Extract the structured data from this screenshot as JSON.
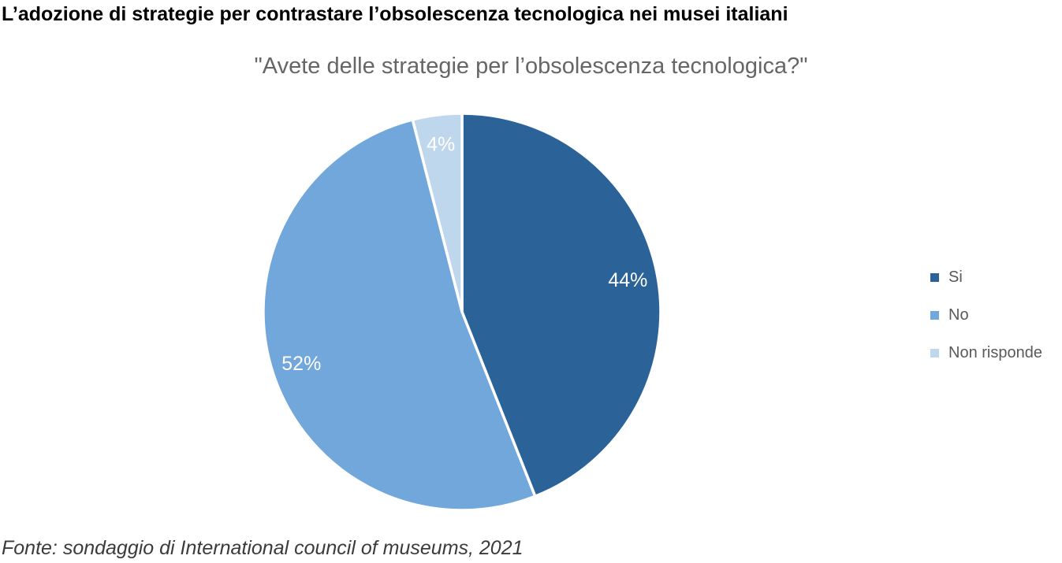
{
  "title": "L’adozione di strategie per contrastare l’obsolescenza tecnologica nei musei italiani",
  "title_color": "#000000",
  "source_note": "Fonte: sondaggio di International council of museums, 2021",
  "source_note_color": "#3B3B3B",
  "chart_data": {
    "type": "pie",
    "title": "\"Avete delle strategie per l’obsolescenza tecnologica?\"",
    "subtitle_color": "#666666",
    "categories": [
      "Si",
      "No",
      "Non risponde"
    ],
    "values": [
      44,
      52,
      4
    ],
    "data_labels": [
      "44%",
      "52%",
      "4%"
    ],
    "colors": [
      "#2B6398",
      "#71A7DB",
      "#BFD7EC"
    ],
    "data_label_color": "#FFFFFF",
    "slice_border_color": "#FFFFFF",
    "start_angle_deg": 0,
    "direction": "clockwise",
    "legend_position": "right",
    "legend_text_color": "#595959"
  }
}
